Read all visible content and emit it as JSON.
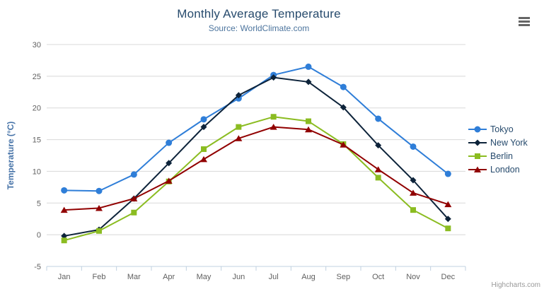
{
  "colors": {
    "background": "#ffffff",
    "title_text": "#274b6d",
    "subtitle_text": "#4d759e",
    "axis_title_text": "#4572a7",
    "tick_label_text": "#606060",
    "gridline": "#d8d8d8",
    "axis_line": "#c0d0e0",
    "legend_text": "#274b6d",
    "credit_text": "#999999",
    "hamburger_icon": "#666666",
    "tokyo": "#2f7ed8",
    "new_york": "#0d233a",
    "berlin": "#8bbc21",
    "london": "#910000"
  },
  "toolbar": {
    "export_menu_icon": "hamburger-icon"
  },
  "credit": {
    "label": "Highcharts.com"
  },
  "chart_data": {
    "type": "line",
    "title": "Monthly Average Temperature",
    "subtitle": "Source: WorldClimate.com",
    "xlabel": "",
    "ylabel": "Temperature (°C)",
    "categories": [
      "Jan",
      "Feb",
      "Mar",
      "Apr",
      "May",
      "Jun",
      "Jul",
      "Aug",
      "Sep",
      "Oct",
      "Nov",
      "Dec"
    ],
    "series": [
      {
        "name": "Tokyo",
        "color": "#2f7ed8",
        "marker": "circle",
        "values": [
          7.0,
          6.9,
          9.5,
          14.5,
          18.2,
          21.5,
          25.2,
          26.5,
          23.3,
          18.3,
          13.9,
          9.6
        ]
      },
      {
        "name": "New York",
        "color": "#0d233a",
        "marker": "diamond",
        "values": [
          -0.2,
          0.8,
          5.7,
          11.3,
          17.0,
          22.0,
          24.8,
          24.1,
          20.1,
          14.1,
          8.6,
          2.5
        ]
      },
      {
        "name": "Berlin",
        "color": "#8bbc21",
        "marker": "square",
        "values": [
          -0.9,
          0.6,
          3.5,
          8.4,
          13.5,
          17.0,
          18.6,
          17.9,
          14.3,
          9.0,
          3.9,
          1.0
        ]
      },
      {
        "name": "London",
        "color": "#910000",
        "marker": "triangle",
        "values": [
          3.9,
          4.2,
          5.7,
          8.5,
          11.9,
          15.2,
          17.0,
          16.6,
          14.2,
          10.3,
          6.6,
          4.8
        ]
      }
    ],
    "ylim": [
      -5,
      30
    ],
    "yticks": [
      -5,
      0,
      5,
      10,
      15,
      20,
      25,
      30
    ],
    "ytick_interval": 5,
    "grid": true,
    "legend_position": "right"
  }
}
